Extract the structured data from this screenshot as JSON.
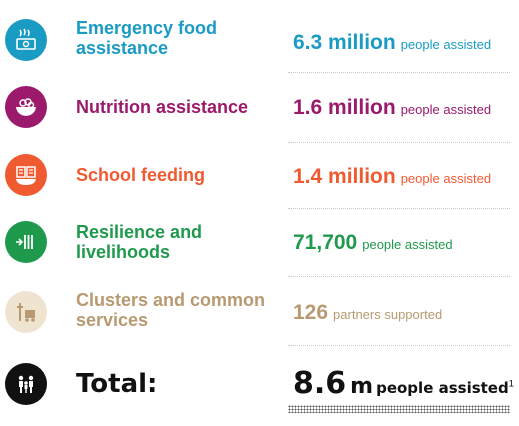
{
  "colors": {
    "emergency": "#1a9bc4",
    "nutrition": "#9b1a6b",
    "school": "#f05a30",
    "resilience": "#1f9a4c",
    "clusters": "#b89a72",
    "total": "#111111"
  },
  "rows": [
    {
      "label": "Emergency food assistance",
      "value": "6.3 million",
      "unit": "people assisted",
      "icon": "food-voucher-icon"
    },
    {
      "label": "Nutrition assistance",
      "value": "1.6 million",
      "unit": "people assisted",
      "icon": "nutrition-bowl-icon"
    },
    {
      "label": "School feeding",
      "value": "1.4 million",
      "unit": "people assisted",
      "icon": "school-meal-icon"
    },
    {
      "label": "Resilience and livelihoods",
      "value": "71,700",
      "unit": "people assisted",
      "icon": "resilience-icon"
    },
    {
      "label": "Clusters and common services",
      "value": "126",
      "unit": "partners supported",
      "icon": "truck-icon"
    }
  ],
  "total": {
    "label": "Total:",
    "value": "8.6",
    "suffix": "m",
    "unit": "people assisted",
    "footnote": "1",
    "icon": "family-icon"
  }
}
